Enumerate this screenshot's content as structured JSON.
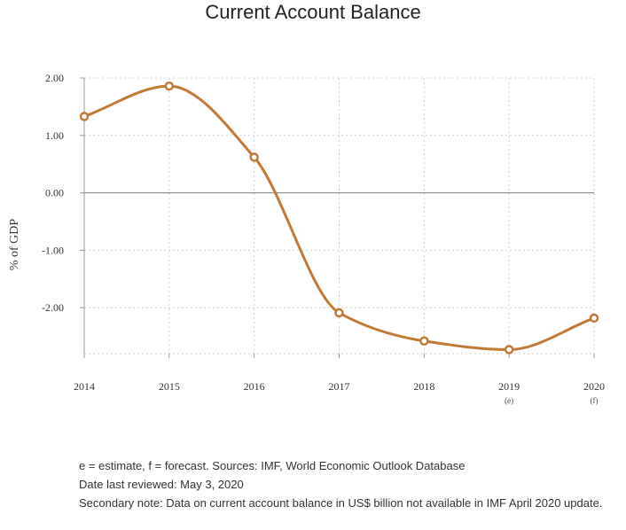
{
  "chart_data": {
    "type": "line",
    "title": "Current Account Balance",
    "xlabel": "",
    "ylabel": "% of GDP",
    "categories": [
      "2014",
      "2015",
      "2016",
      "2017",
      "2018",
      "2019",
      "2020"
    ],
    "category_notes": [
      "",
      "",
      "",
      "",
      "",
      "(e)",
      "(f)"
    ],
    "series": [
      {
        "values": [
          1.33,
          1.86,
          0.62,
          -2.09,
          -2.58,
          -2.73,
          -2.18
        ]
      }
    ],
    "ylim": [
      -2.8,
      2.0
    ],
    "yticks": [
      "2.00",
      "1.00",
      "0.00",
      "-1.00",
      "-2.00"
    ],
    "ytick_values": [
      2,
      1,
      0,
      -1,
      -2
    ],
    "grid": true,
    "smooth": true,
    "colors": {
      "line": "#c17a35",
      "grid": "#cfcfcf",
      "axis": "#999999",
      "zero": "#888888"
    }
  },
  "notes": {
    "line1": "e = estimate, f = forecast. Sources: IMF, World Economic Outlook Database",
    "line2": "Date last reviewed: May 3, 2020",
    "line3": "Secondary note: Data on current account balance in US$ billion not available in IMF April 2020 update."
  }
}
